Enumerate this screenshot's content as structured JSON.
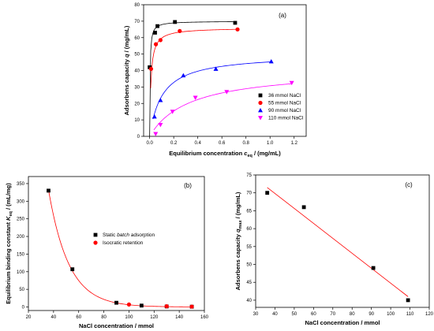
{
  "chart_data": [
    {
      "panel_label": "(a)",
      "type": "scatter",
      "xlabel_main": "Equilibrium concentration ",
      "xlabel_symbol": "c",
      "xlabel_sub": "eq",
      "xlabel_unit": " / (mg/mL)",
      "ylabel_main": "Adsorbens capacity ",
      "ylabel_symbol": "q",
      "ylabel_unit": " / (mg/mL)",
      "xlim": [
        -0.05,
        1.3
      ],
      "ylim": [
        0,
        80
      ],
      "xticks": [
        "0.0",
        "0.2",
        "0.4",
        "0.6",
        "0.8",
        "1.0",
        "1.2"
      ],
      "yticks": [
        "0",
        "10",
        "20",
        "30",
        "40",
        "50",
        "60",
        "70",
        "80"
      ],
      "legend_position": "right",
      "series": [
        {
          "name": "36 mmol NaCl",
          "color": "#000000",
          "marker": "square",
          "points": [
            [
              0.0,
              42
            ],
            [
              0.045,
              63
            ],
            [
              0.065,
              67
            ],
            [
              0.21,
              69.5
            ],
            [
              0.71,
              69
            ]
          ],
          "fit": {
            "qmax": 70,
            "K": 320
          }
        },
        {
          "name": "55 mmol NaCl",
          "color": "#ff0000",
          "marker": "circle",
          "points": [
            [
              0.012,
              41
            ],
            [
              0.052,
              56
            ],
            [
              0.09,
              58.5
            ],
            [
              0.25,
              64
            ],
            [
              0.73,
              65
            ]
          ],
          "fit": {
            "qmax": 66,
            "K": 95
          }
        },
        {
          "name": "90 mmol NaCl",
          "color": "#0000ff",
          "marker": "triangle-up",
          "points": [
            [
              0.04,
              12
            ],
            [
              0.09,
              22
            ],
            [
              0.28,
              37
            ],
            [
              0.55,
              41
            ],
            [
              1.01,
              45.5
            ]
          ],
          "fit": {
            "qmax": 50,
            "K": 9.5
          }
        },
        {
          "name": "110 mmol NaCl",
          "color": "#ff00ff",
          "marker": "triangle-down",
          "points": [
            [
              0.05,
              1.5
            ],
            [
              0.09,
              7
            ],
            [
              0.19,
              15
            ],
            [
              0.38,
              23.5
            ],
            [
              0.64,
              27
            ],
            [
              1.18,
              32.5
            ]
          ],
          "fit": {
            "qmax": 41,
            "K": 3.0
          }
        }
      ]
    },
    {
      "panel_label": "(b)",
      "type": "scatter",
      "xlabel": "NaCl concentration / mmol",
      "ylabel_main": "Equilibrium binding constant ",
      "ylabel_symbol": "K",
      "ylabel_sub": "eq",
      "ylabel_unit": " / (mL/mg)",
      "xlim": [
        20,
        160
      ],
      "ylim": [
        -10,
        370
      ],
      "xticks": [
        "20",
        "40",
        "60",
        "80",
        "100",
        "120",
        "140",
        "160"
      ],
      "yticks": [
        "0",
        "50",
        "100",
        "150",
        "200",
        "250",
        "300",
        "350"
      ],
      "legend_position": "center",
      "legend": [
        {
          "prefix": "Static ",
          "italic": "batch",
          "suffix": " adsorption"
        },
        {
          "prefix": "Isocratic retention",
          "italic": "",
          "suffix": ""
        }
      ],
      "series": [
        {
          "name_index": 0,
          "color": "#000000",
          "marker": "square",
          "points": [
            [
              36,
              330
            ],
            [
              55,
              107
            ],
            [
              90,
              12
            ],
            [
              110,
              4
            ],
            [
              130,
              1.5
            ],
            [
              150,
              0.8
            ]
          ]
        },
        {
          "name_index": 1,
          "color": "#ff0000",
          "marker": "circle",
          "points": [
            [
              100,
              7
            ],
            [
              130,
              2
            ],
            [
              150,
              1
            ]
          ]
        }
      ],
      "fit": {
        "color": "#ff0000",
        "a": 332,
        "b": 0.062,
        "x0": 36,
        "x_from": 36,
        "x_to": 150
      }
    },
    {
      "panel_label": "(c)",
      "type": "scatter",
      "xlabel": "NaCl concentration / mmol",
      "ylabel_main": "Adsorbens capacity ",
      "ylabel_symbol": "q",
      "ylabel_sub": "max",
      "ylabel_unit": " / (mg/mL)",
      "xlim": [
        30,
        120
      ],
      "ylim": [
        38,
        75
      ],
      "xticks": [
        "30",
        "40",
        "50",
        "60",
        "70",
        "80",
        "90",
        "100",
        "110",
        "120"
      ],
      "yticks": [
        "40",
        "45",
        "50",
        "55",
        "60",
        "65",
        "70",
        "75"
      ],
      "series": [
        {
          "color": "#000000",
          "marker": "square",
          "points": [
            [
              36,
              70
            ],
            [
              55,
              66
            ],
            [
              91,
              49
            ],
            [
              109,
              40
            ]
          ]
        }
      ],
      "fit": {
        "color": "#ff0000",
        "x_from": 36,
        "x_to": 109,
        "y_from": 71.5,
        "y_to": 41
      }
    }
  ]
}
